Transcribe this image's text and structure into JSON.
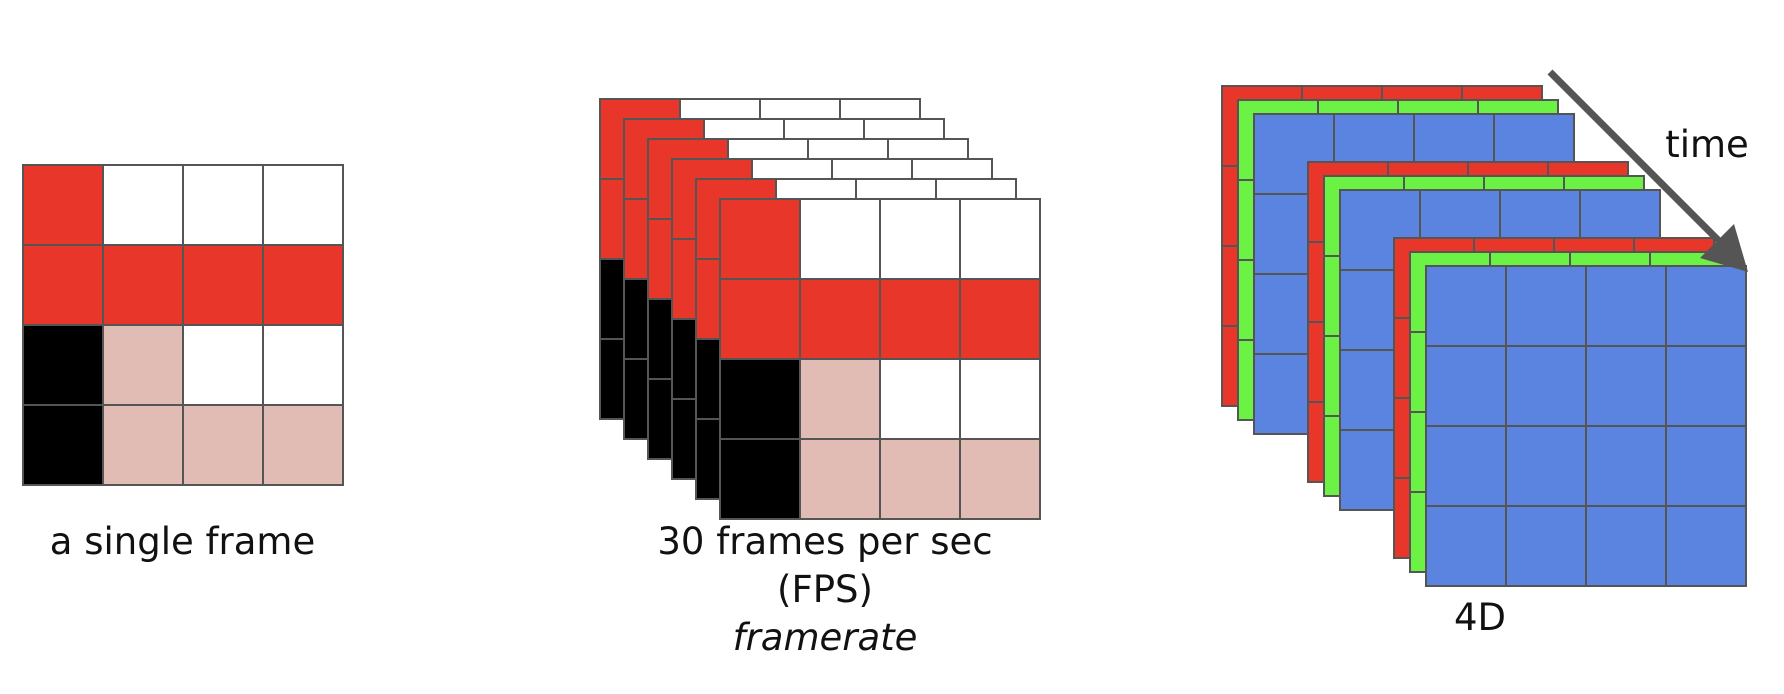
{
  "labels": {
    "single_frame": "a single frame",
    "fps_line1": "30 frames per sec",
    "fps_line2": "(FPS)",
    "fps_line3": "framerate",
    "time": "time",
    "four_d": "4D"
  },
  "colors": {
    "red": "#e8362a",
    "white": "#ffffff",
    "black": "#000000",
    "pink": "#e0bcb4",
    "green": "#6cf244",
    "blue": "#5b84e0",
    "grid_line": "#555555",
    "arrow": "#555555"
  },
  "single_frame_pixels": [
    [
      "red",
      "white",
      "white",
      "white"
    ],
    [
      "red",
      "red",
      "red",
      "red"
    ],
    [
      "black",
      "pink",
      "white",
      "white"
    ],
    [
      "black",
      "pink",
      "pink",
      "pink"
    ]
  ],
  "fps_stack_count": 6,
  "rgb_channel_order": [
    "red",
    "green",
    "blue"
  ],
  "time_stack_count": 3
}
